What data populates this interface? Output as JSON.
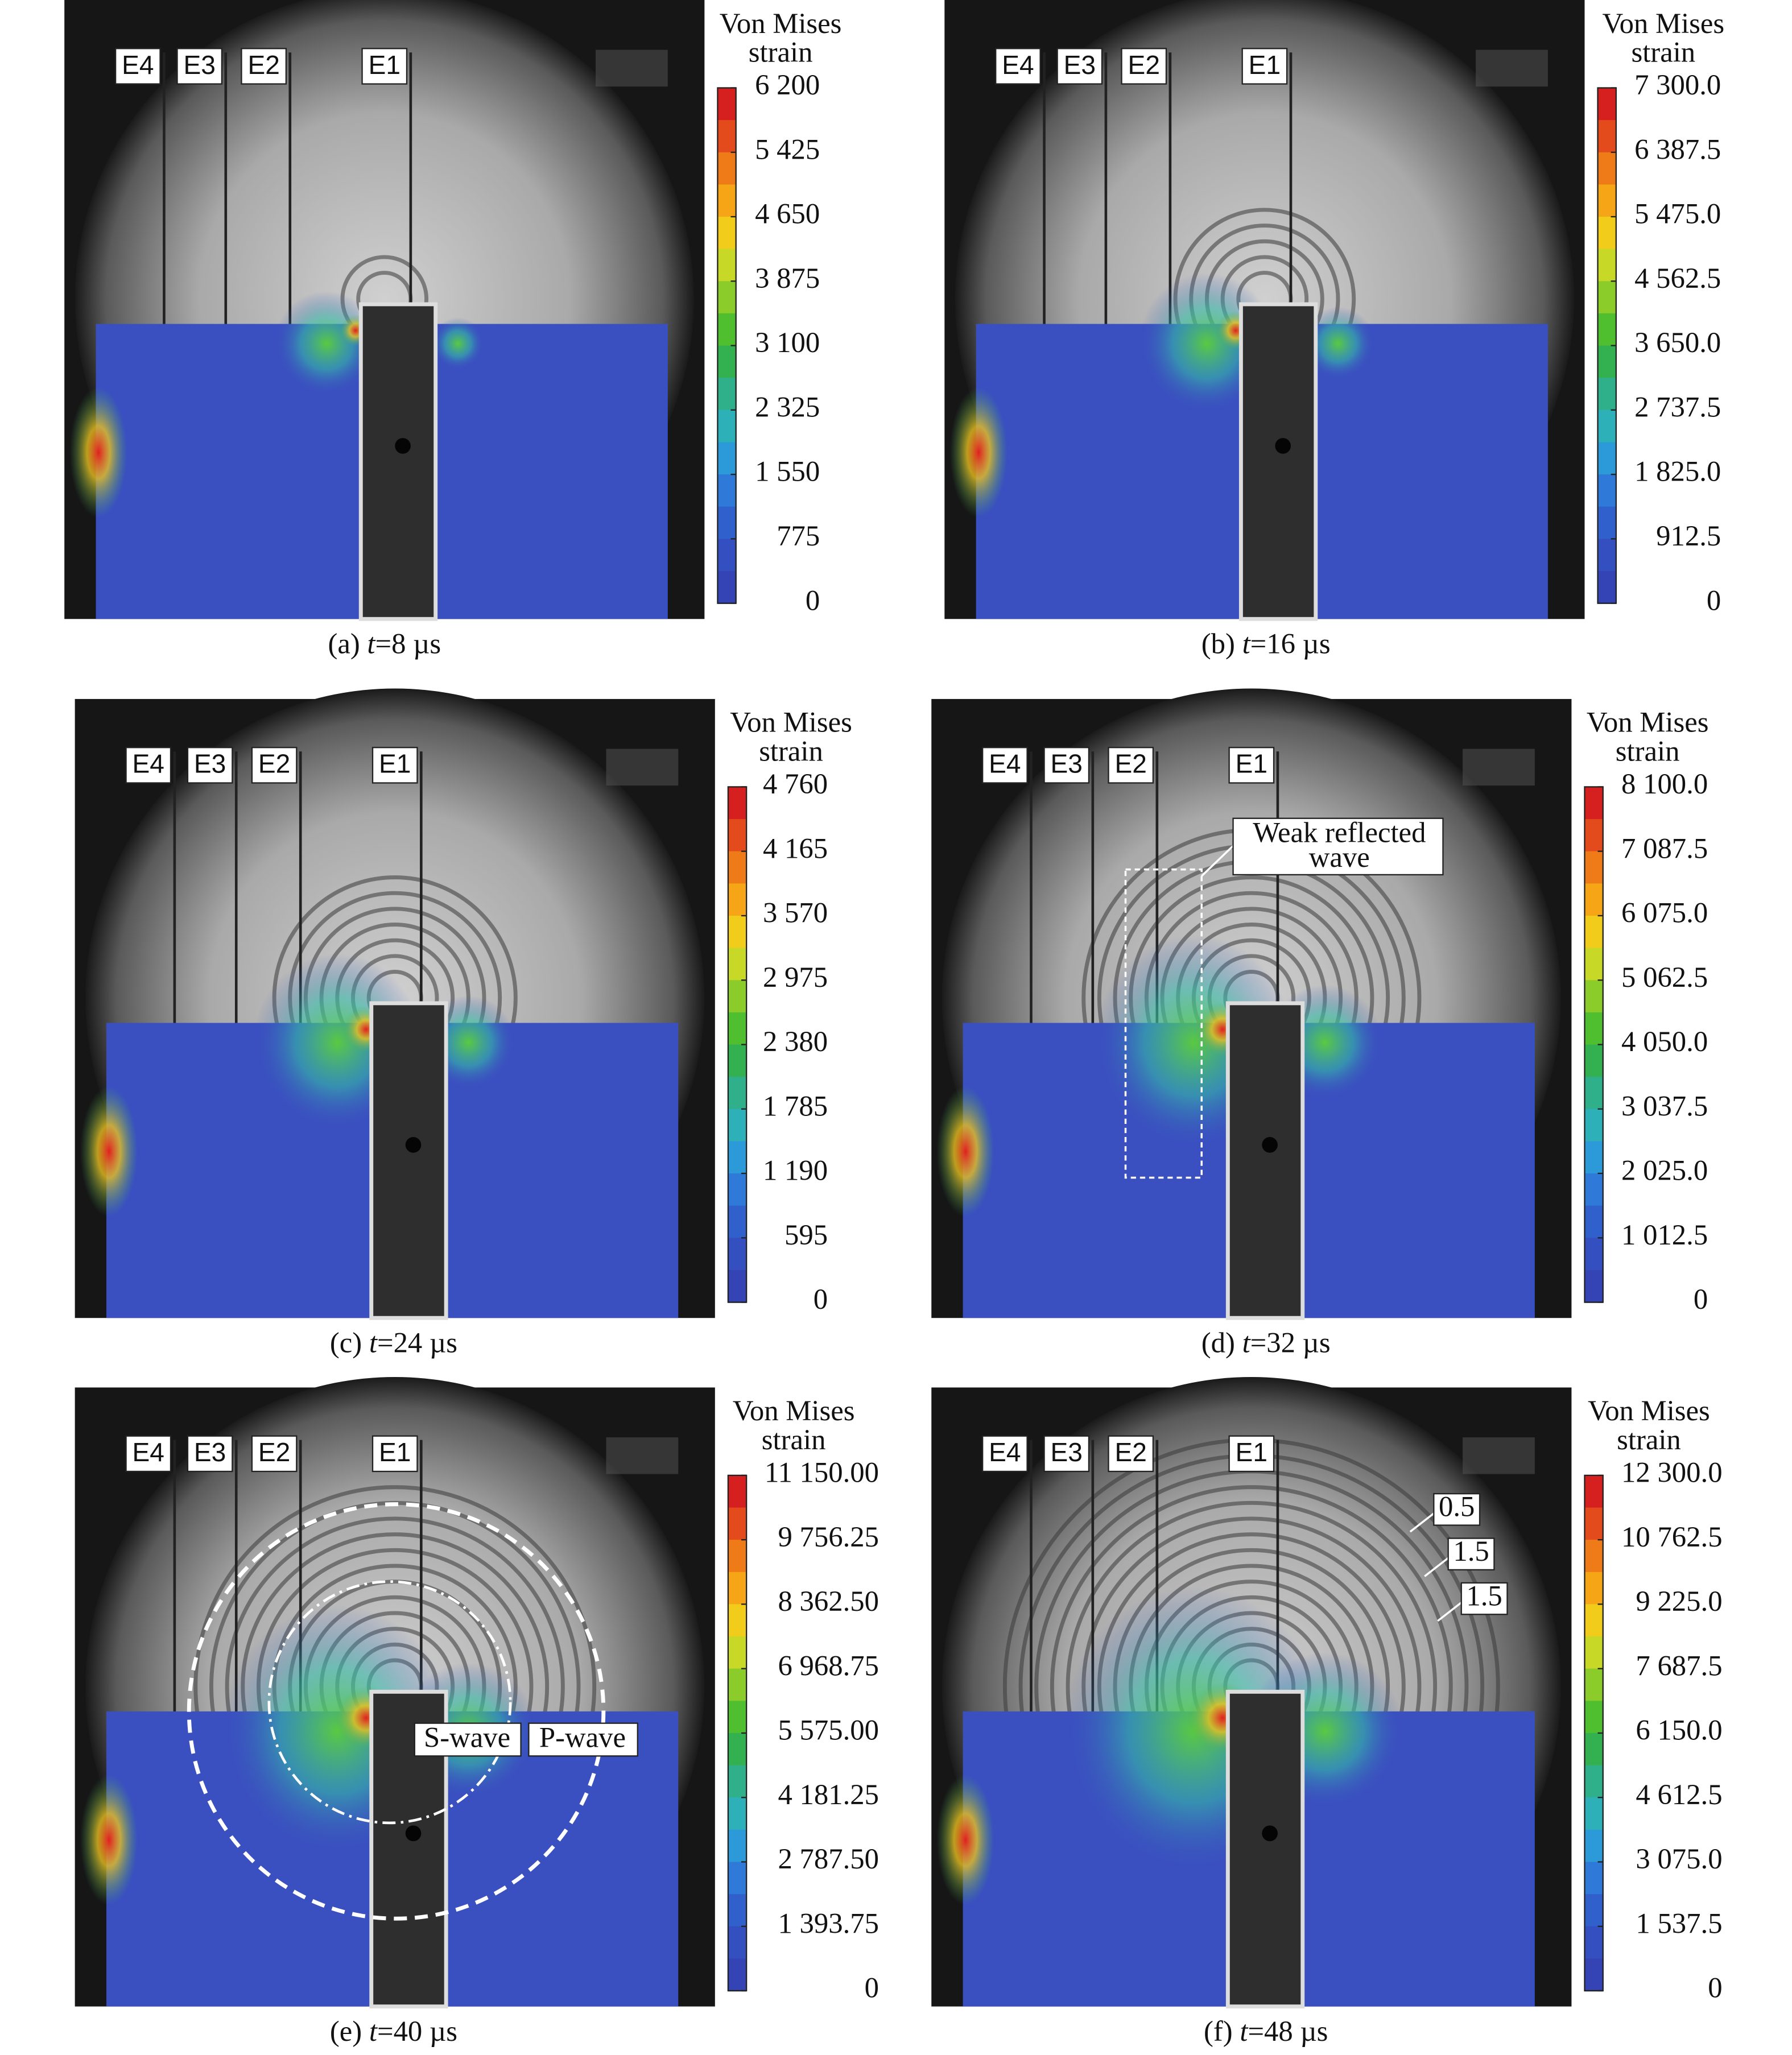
{
  "panels": [
    {
      "caption": {
        "label": "(a)",
        "var": "t",
        "rest": "=8 µs"
      },
      "electrodes": [
        "E4",
        "E3",
        "E2",
        "E1"
      ],
      "legend_title": [
        "Von Mises",
        "strain"
      ],
      "ticks": [
        "6 200",
        "5 425",
        "4 650",
        "3 875",
        "3 100",
        "2 325",
        "1 550",
        "775",
        "0"
      ],
      "annotations": []
    },
    {
      "caption": {
        "label": "(b)",
        "var": "t",
        "rest": "=16 µs"
      },
      "electrodes": [
        "E4",
        "E3",
        "E2",
        "E1"
      ],
      "legend_title": [
        "Von Mises",
        "strain"
      ],
      "ticks": [
        "7 300.0",
        "6 387.5",
        "5 475.0",
        "4 562.5",
        "3 650.0",
        "2 737.5",
        "1 825.0",
        "912.5",
        "0"
      ],
      "annotations": []
    },
    {
      "caption": {
        "label": "(c)",
        "var": "t",
        "rest": "=24 µs"
      },
      "electrodes": [
        "E4",
        "E3",
        "E2",
        "E1"
      ],
      "legend_title": [
        "Von Mises",
        "strain"
      ],
      "ticks": [
        "4 760",
        "4 165",
        "3 570",
        "2 975",
        "2 380",
        "1 785",
        "1 190",
        "595",
        "0"
      ],
      "annotations": []
    },
    {
      "caption": {
        "label": "(d)",
        "var": "t",
        "rest": "=32 µs"
      },
      "electrodes": [
        "E4",
        "E3",
        "E2",
        "E1"
      ],
      "legend_title": [
        "Von Mises",
        "strain"
      ],
      "ticks": [
        "8 100.0",
        "7 087.5",
        "6 075.0",
        "5 062.5",
        "4 050.0",
        "3 037.5",
        "2 025.0",
        "1 012.5",
        "0"
      ],
      "annotations": [
        "Weak reflected",
        "wave"
      ]
    },
    {
      "caption": {
        "label": "(e)",
        "var": "t",
        "rest": "=40 µs"
      },
      "electrodes": [
        "E4",
        "E3",
        "E2",
        "E1"
      ],
      "legend_title": [
        "Von Mises",
        "strain"
      ],
      "ticks": [
        "11 150.00",
        "9 756.25",
        "8 362.50",
        "6 968.75",
        "5 575.00",
        "4 181.25",
        "2 787.50",
        "1 393.75",
        "0"
      ],
      "annotations": [
        "S-wave",
        "P-wave"
      ]
    },
    {
      "caption": {
        "label": "(f)",
        "var": "t",
        "rest": "=48 µs"
      },
      "electrodes": [
        "E4",
        "E3",
        "E2",
        "E1"
      ],
      "legend_title": [
        "Von Mises",
        "strain"
      ],
      "ticks": [
        "12 300.0",
        "10 762.5",
        "9 225.0",
        "7 687.5",
        "6 150.0",
        "4 612.5",
        "3 075.0",
        "1 537.5",
        "0"
      ],
      "annotations": [
        "0.5",
        "1.5",
        "1.5"
      ]
    }
  ]
}
